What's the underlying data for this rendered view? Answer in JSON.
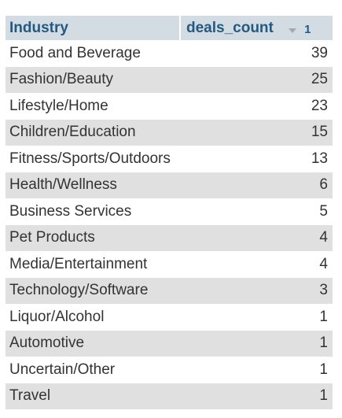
{
  "table": {
    "headers": {
      "industry": "Industry",
      "deals_count": "deals_count",
      "sort_order": "1"
    },
    "sort_icon": "sort-descending-icon",
    "rows": [
      {
        "industry": "Food and Beverage",
        "deals_count": "39"
      },
      {
        "industry": "Fashion/Beauty",
        "deals_count": "25"
      },
      {
        "industry": "Lifestyle/Home",
        "deals_count": "23"
      },
      {
        "industry": "Children/Education",
        "deals_count": "15"
      },
      {
        "industry": "Fitness/Sports/Outdoors",
        "deals_count": "13"
      },
      {
        "industry": "Health/Wellness",
        "deals_count": "6"
      },
      {
        "industry": "Business Services",
        "deals_count": "5"
      },
      {
        "industry": "Pet Products",
        "deals_count": "4"
      },
      {
        "industry": "Media/Entertainment",
        "deals_count": "4"
      },
      {
        "industry": "Technology/Software",
        "deals_count": "3"
      },
      {
        "industry": "Liquor/Alcohol",
        "deals_count": "1"
      },
      {
        "industry": "Automotive",
        "deals_count": "1"
      },
      {
        "industry": "Uncertain/Other",
        "deals_count": "1"
      },
      {
        "industry": "Travel",
        "deals_count": "1"
      }
    ]
  },
  "colors": {
    "header_bg": "#d3dce3",
    "header_text": "#235a81",
    "row_even_bg": "#e0e0e0",
    "row_odd_bg": "#ffffff",
    "cell_text": "#333333"
  }
}
